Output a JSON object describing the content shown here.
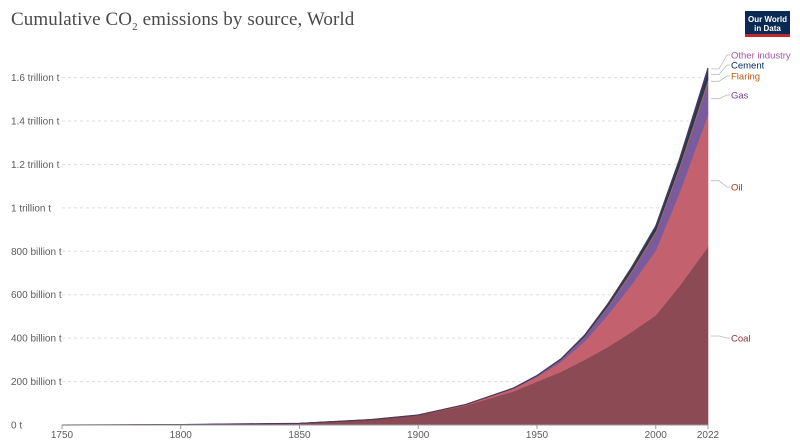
{
  "title": {
    "prefix": "Cumulative CO",
    "subscript": "2",
    "suffix": " emissions by source, World"
  },
  "logo": {
    "line1": "Our World",
    "line2": "in Data"
  },
  "chart_data": {
    "type": "area",
    "stacked": true,
    "title": "Cumulative CO2 emissions by source, World",
    "xlim": [
      1750,
      2022
    ],
    "ylim": [
      0,
      1.75
    ],
    "y_unit_note": "values in trillion t",
    "x_ticks": [
      {
        "value": 1750,
        "label": "1750"
      },
      {
        "value": 1800,
        "label": "1800"
      },
      {
        "value": 1850,
        "label": "1850"
      },
      {
        "value": 1900,
        "label": "1900"
      },
      {
        "value": 1950,
        "label": "1950"
      },
      {
        "value": 2000,
        "label": "2000"
      },
      {
        "value": 2022,
        "label": "2022"
      }
    ],
    "y_ticks": [
      {
        "value": 0,
        "label": "0 t"
      },
      {
        "value": 0.2,
        "label": "200 billion t"
      },
      {
        "value": 0.4,
        "label": "400 billion t"
      },
      {
        "value": 0.6,
        "label": "600 billion t"
      },
      {
        "value": 0.8,
        "label": "800 billion t"
      },
      {
        "value": 1.0,
        "label": "1 trillion t"
      },
      {
        "value": 1.2,
        "label": "1.2 trillion t"
      },
      {
        "value": 1.4,
        "label": "1.4 trillion t"
      },
      {
        "value": 1.6,
        "label": "1.6 trillion t"
      }
    ],
    "grid": "horizontal dashed",
    "legend": "right-end labels",
    "x": [
      1750,
      1800,
      1850,
      1880,
      1900,
      1920,
      1940,
      1950,
      1960,
      1970,
      1980,
      1990,
      2000,
      2010,
      2022
    ],
    "series": [
      {
        "name": "Coal",
        "color": "#8c4a54",
        "label_color": "#883039",
        "values": [
          0.0,
          0.002,
          0.008,
          0.025,
          0.045,
          0.09,
          0.155,
          0.2,
          0.245,
          0.3,
          0.36,
          0.43,
          0.505,
          0.64,
          0.82
        ]
      },
      {
        "name": "Oil",
        "color": "#c4616e",
        "label_color": "#b13507",
        "values": [
          0.0,
          0.0,
          0.0,
          0.0,
          0.001,
          0.004,
          0.012,
          0.022,
          0.045,
          0.085,
          0.15,
          0.22,
          0.3,
          0.43,
          0.61
        ]
      },
      {
        "name": "Gas",
        "color": "#7a5c9e",
        "label_color": "#6d3e91",
        "values": [
          0.0,
          0.0,
          0.0,
          0.0,
          0.0,
          0.001,
          0.002,
          0.004,
          0.01,
          0.02,
          0.036,
          0.055,
          0.08,
          0.11,
          0.145
        ]
      },
      {
        "name": "Flaring",
        "color": "#b8683f",
        "label_color": "#c05917",
        "values": [
          0.0,
          0.0,
          0.0,
          0.0,
          0.0,
          0.0,
          0.0,
          0.0,
          0.001,
          0.002,
          0.005,
          0.008,
          0.01,
          0.012,
          0.016
        ]
      },
      {
        "name": "Cement",
        "color": "#1f3a5f",
        "label_color": "#00295b",
        "values": [
          0.0,
          0.0,
          0.0,
          0.0,
          0.0,
          0.0,
          0.001,
          0.002,
          0.003,
          0.006,
          0.01,
          0.015,
          0.02,
          0.028,
          0.045
        ]
      },
      {
        "name": "Other industry",
        "color": "#a02f3a",
        "label_color": "#a2559c",
        "values": [
          0.0,
          0.0,
          0.0,
          0.0,
          0.0,
          0.0,
          0.0,
          0.0,
          0.0,
          0.0,
          0.0,
          0.001,
          0.002,
          0.004,
          0.008
        ]
      }
    ]
  }
}
